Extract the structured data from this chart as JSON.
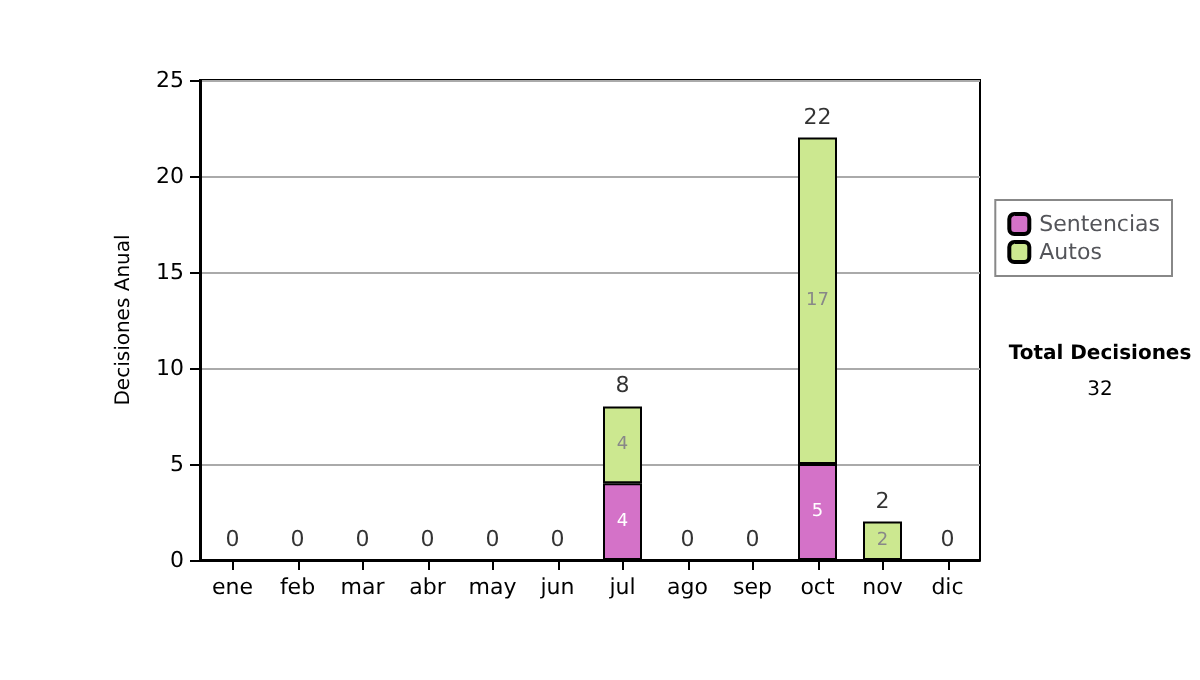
{
  "chart_data": {
    "type": "bar",
    "stacked": true,
    "ylabel": "Decisiones Anual",
    "categories": [
      "ene",
      "feb",
      "mar",
      "abr",
      "may",
      "jun",
      "jul",
      "ago",
      "sep",
      "oct",
      "nov",
      "dic"
    ],
    "series": [
      {
        "name": "Sentencias",
        "color": "#d472c8",
        "values": [
          0,
          0,
          0,
          0,
          0,
          0,
          4,
          0,
          0,
          5,
          0,
          0
        ],
        "value_labels": [
          null,
          null,
          null,
          null,
          null,
          null,
          "4",
          null,
          null,
          "5",
          null,
          null
        ]
      },
      {
        "name": "Autos",
        "color": "#cce890",
        "values": [
          0,
          0,
          0,
          0,
          0,
          0,
          4,
          0,
          0,
          17,
          2,
          0
        ],
        "value_labels": [
          null,
          null,
          null,
          null,
          null,
          null,
          "4",
          null,
          null,
          "17",
          "2",
          null
        ]
      }
    ],
    "totals": [
      "0",
      "0",
      "0",
      "0",
      "0",
      "0",
      "8",
      "0",
      "0",
      "22",
      "2",
      "0"
    ],
    "ylim": [
      0,
      25
    ],
    "yticks": [
      0,
      5,
      10,
      15,
      20,
      25
    ],
    "grid": "y",
    "legend": "right",
    "annotations": [
      "Total Decisiones",
      "32"
    ]
  }
}
